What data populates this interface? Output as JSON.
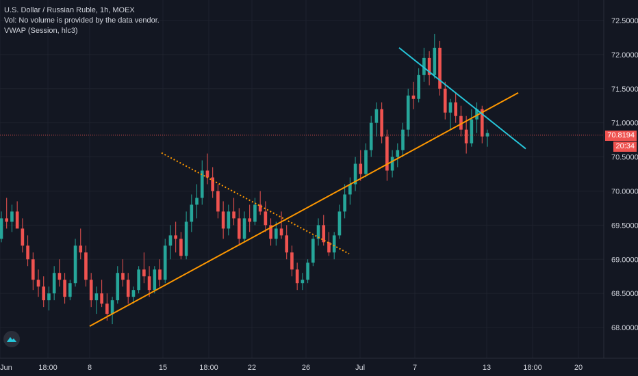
{
  "legend": {
    "symbol_line": "U.S. Dollar / Russian Ruble, 1h, MOEX",
    "volume_line": "Vol: No volume is provided by the data vendor.",
    "vwap_line": "VWAP (Session, hlc3)"
  },
  "current_price_label": "70.8194",
  "countdown_label": "20:34",
  "colors": {
    "background": "#131722",
    "grid": "#1e222d",
    "up": "#26a69a",
    "down": "#ef5350",
    "trend_orange": "#ff9800",
    "trend_teal": "#26c6da",
    "axis_text": "#d1d4dc",
    "price_line": "#ef5350"
  },
  "chart_data": {
    "type": "candlestick",
    "symbol": "U.S. Dollar / Russian Ruble",
    "interval": "1h",
    "exchange": "MOEX",
    "y_ticks": [
      "72.5000",
      "72.0000",
      "71.5000",
      "71.0000",
      "70.5000",
      "70.0000",
      "69.5000",
      "69.0000",
      "68.5000",
      "68.0000"
    ],
    "y_tick_values": [
      72.5,
      72.0,
      71.5,
      71.0,
      70.5,
      70.0,
      69.5,
      69.0,
      68.5,
      68.0
    ],
    "ylim": [
      67.55,
      72.8
    ],
    "x_ticks": [
      "Jun",
      "18:00",
      "8",
      "15",
      "18:00",
      "22",
      "26",
      "Jul",
      "7",
      "13",
      "18:00",
      "20"
    ],
    "x_tick_index": [
      0,
      70,
      131,
      238,
      305,
      368,
      447,
      526,
      606,
      711,
      778,
      845
    ],
    "last_price": 70.8194,
    "candles": [
      [
        69.3,
        69.7,
        69.25,
        69.6
      ],
      [
        69.6,
        69.9,
        69.45,
        69.55
      ],
      [
        69.55,
        69.8,
        69.4,
        69.7
      ],
      [
        69.7,
        69.85,
        69.5,
        69.45
      ],
      [
        69.45,
        69.6,
        69.1,
        69.2
      ],
      [
        69.2,
        69.35,
        68.9,
        69.0
      ],
      [
        69.0,
        69.1,
        68.55,
        68.7
      ],
      [
        68.7,
        68.85,
        68.45,
        68.6
      ],
      [
        68.6,
        68.75,
        68.3,
        68.4
      ],
      [
        68.4,
        68.6,
        68.25,
        68.5
      ],
      [
        68.5,
        68.9,
        68.4,
        68.8
      ],
      [
        68.8,
        69.0,
        68.6,
        68.7
      ],
      [
        68.7,
        68.8,
        68.35,
        68.45
      ],
      [
        68.45,
        68.7,
        68.4,
        68.65
      ],
      [
        68.65,
        69.3,
        68.6,
        69.2
      ],
      [
        69.2,
        69.45,
        69.0,
        69.1
      ],
      [
        69.1,
        69.2,
        68.6,
        68.7
      ],
      [
        68.7,
        68.8,
        68.3,
        68.4
      ],
      [
        68.4,
        68.6,
        68.2,
        68.5
      ],
      [
        68.5,
        68.7,
        68.3,
        68.35
      ],
      [
        68.35,
        68.5,
        68.1,
        68.2
      ],
      [
        68.2,
        68.45,
        68.05,
        68.4
      ],
      [
        68.4,
        68.9,
        68.35,
        68.8
      ],
      [
        68.8,
        69.0,
        68.6,
        68.7
      ],
      [
        68.7,
        68.8,
        68.35,
        68.45
      ],
      [
        68.45,
        68.6,
        68.35,
        68.55
      ],
      [
        68.55,
        68.9,
        68.5,
        68.85
      ],
      [
        68.85,
        69.1,
        68.65,
        68.75
      ],
      [
        68.75,
        68.9,
        68.45,
        68.55
      ],
      [
        68.55,
        68.9,
        68.5,
        68.85
      ],
      [
        68.85,
        69.0,
        68.6,
        68.7
      ],
      [
        68.7,
        69.3,
        68.65,
        69.2
      ],
      [
        69.2,
        69.5,
        69.0,
        69.35
      ],
      [
        69.35,
        69.55,
        69.1,
        69.3
      ],
      [
        69.3,
        69.4,
        69.0,
        69.05
      ],
      [
        69.05,
        69.7,
        69.0,
        69.55
      ],
      [
        69.55,
        69.95,
        69.4,
        69.8
      ],
      [
        69.8,
        70.1,
        69.6,
        69.9
      ],
      [
        69.9,
        70.45,
        69.8,
        70.3
      ],
      [
        70.3,
        70.55,
        70.1,
        70.2
      ],
      [
        70.2,
        70.35,
        69.9,
        70.0
      ],
      [
        70.0,
        70.1,
        69.6,
        69.7
      ],
      [
        69.7,
        69.85,
        69.3,
        69.45
      ],
      [
        69.45,
        69.8,
        69.35,
        69.7
      ],
      [
        69.7,
        69.9,
        69.5,
        69.6
      ],
      [
        69.6,
        69.75,
        69.2,
        69.3
      ],
      [
        69.3,
        69.7,
        69.25,
        69.6
      ],
      [
        69.6,
        69.8,
        69.4,
        69.55
      ],
      [
        69.55,
        69.9,
        69.5,
        69.8
      ],
      [
        69.8,
        70.0,
        69.65,
        69.7
      ],
      [
        69.7,
        69.85,
        69.4,
        69.5
      ],
      [
        69.5,
        69.6,
        69.2,
        69.3
      ],
      [
        69.3,
        69.55,
        69.2,
        69.45
      ],
      [
        69.45,
        69.7,
        69.3,
        69.35
      ],
      [
        69.35,
        69.5,
        69.0,
        69.1
      ],
      [
        69.1,
        69.2,
        68.75,
        68.85
      ],
      [
        68.85,
        68.95,
        68.55,
        68.65
      ],
      [
        68.65,
        68.8,
        68.55,
        68.7
      ],
      [
        68.7,
        69.0,
        68.65,
        68.95
      ],
      [
        68.95,
        69.35,
        68.9,
        69.3
      ],
      [
        69.3,
        69.6,
        69.2,
        69.5
      ],
      [
        69.5,
        69.65,
        69.2,
        69.25
      ],
      [
        69.25,
        69.4,
        69.05,
        69.1
      ],
      [
        69.1,
        69.4,
        69.0,
        69.35
      ],
      [
        69.35,
        69.8,
        69.3,
        69.7
      ],
      [
        69.7,
        70.1,
        69.6,
        69.95
      ],
      [
        69.95,
        70.2,
        69.8,
        70.1
      ],
      [
        70.1,
        70.5,
        70.0,
        70.4
      ],
      [
        70.4,
        70.6,
        70.15,
        70.25
      ],
      [
        70.25,
        70.7,
        70.2,
        70.6
      ],
      [
        70.6,
        71.1,
        70.5,
        71.0
      ],
      [
        71.0,
        71.3,
        70.8,
        71.2
      ],
      [
        71.2,
        71.3,
        70.7,
        70.8
      ],
      [
        70.8,
        70.9,
        70.15,
        70.3
      ],
      [
        70.3,
        70.6,
        70.2,
        70.5
      ],
      [
        70.5,
        70.7,
        70.35,
        70.6
      ],
      [
        70.6,
        71.0,
        70.5,
        70.9
      ],
      [
        70.9,
        71.5,
        70.8,
        71.4
      ],
      [
        71.4,
        71.6,
        71.2,
        71.35
      ],
      [
        71.35,
        71.8,
        71.3,
        71.7
      ],
      [
        71.7,
        72.1,
        71.6,
        71.95
      ],
      [
        71.95,
        72.05,
        71.55,
        71.7
      ],
      [
        71.7,
        72.3,
        71.65,
        72.1
      ],
      [
        72.1,
        72.2,
        71.4,
        71.5
      ],
      [
        71.5,
        71.6,
        71.05,
        71.15
      ],
      [
        71.15,
        71.35,
        70.9,
        71.3
      ],
      [
        71.3,
        71.45,
        71.0,
        71.1
      ],
      [
        71.1,
        71.25,
        70.8,
        70.9
      ],
      [
        70.9,
        71.1,
        70.55,
        70.7
      ],
      [
        70.7,
        71.2,
        70.65,
        71.05
      ],
      [
        71.05,
        71.3,
        70.85,
        71.2
      ],
      [
        71.2,
        71.25,
        70.7,
        70.8
      ],
      [
        70.8,
        70.9,
        70.65,
        70.85
      ]
    ],
    "trendlines": [
      {
        "style": "solid",
        "color": "#ff9800",
        "from": [
          131,
          68.02
        ],
        "to": [
          757,
          71.44
        ]
      },
      {
        "style": "dotted",
        "color": "#ff9800",
        "from": [
          236,
          70.56
        ],
        "to": [
          510,
          69.08
        ]
      },
      {
        "style": "solid",
        "color": "#26c6da",
        "from": [
          583,
          72.1
        ],
        "to": [
          768,
          70.62
        ]
      }
    ]
  }
}
